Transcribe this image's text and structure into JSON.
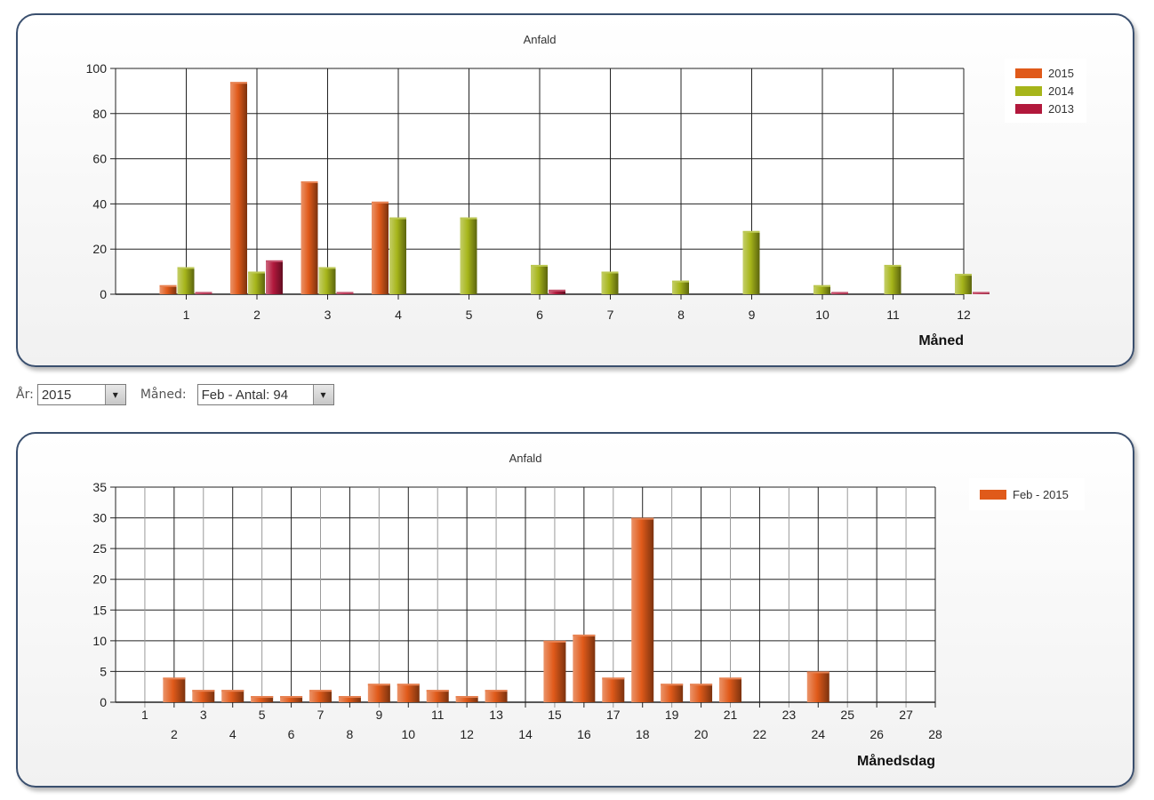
{
  "colors": {
    "s2015": "#e05a1a",
    "s2014": "#a6b51a",
    "s2013": "#b2183c"
  },
  "chart1": {
    "title": "Anfald",
    "xlabel": "Måned",
    "legend": [
      "2015",
      "2014",
      "2013"
    ]
  },
  "controls": {
    "year_label": "År:",
    "year_value": "2015",
    "month_label": "Måned:",
    "month_value": "Feb - Antal: 94",
    "arrow": "▾"
  },
  "chart2": {
    "title": "Anfald",
    "xlabel": "Månedsdag",
    "legend": [
      "Feb - 2015"
    ]
  },
  "chart_data": [
    {
      "type": "bar",
      "title": "Anfald",
      "xlabel": "Måned",
      "ylabel": "",
      "categories": [
        "1",
        "2",
        "3",
        "4",
        "5",
        "6",
        "7",
        "8",
        "9",
        "10",
        "11",
        "12"
      ],
      "series": [
        {
          "name": "2015",
          "values": [
            4,
            94,
            50,
            41,
            0,
            0,
            0,
            0,
            0,
            0,
            0,
            0
          ]
        },
        {
          "name": "2014",
          "values": [
            12,
            10,
            12,
            34,
            34,
            13,
            10,
            6,
            28,
            4,
            13,
            9
          ]
        },
        {
          "name": "2013",
          "values": [
            1,
            15,
            1,
            0,
            0,
            2,
            0,
            0,
            0,
            1,
            0,
            1
          ]
        }
      ],
      "ylim": [
        0,
        100
      ],
      "yticks": [
        0,
        20,
        40,
        60,
        80,
        100
      ],
      "grid": true,
      "legend_position": "top-right"
    },
    {
      "type": "bar",
      "title": "Anfald",
      "xlabel": "Månedsdag",
      "ylabel": "",
      "categories": [
        "1",
        "2",
        "3",
        "4",
        "5",
        "6",
        "7",
        "8",
        "9",
        "10",
        "11",
        "12",
        "13",
        "14",
        "15",
        "16",
        "17",
        "18",
        "19",
        "20",
        "21",
        "22",
        "23",
        "24",
        "25",
        "26",
        "27",
        "28"
      ],
      "series": [
        {
          "name": "Feb - 2015",
          "values": [
            0,
            4,
            2,
            2,
            1,
            1,
            2,
            1,
            3,
            3,
            2,
            1,
            2,
            0,
            10,
            11,
            4,
            30,
            3,
            3,
            4,
            0,
            0,
            5,
            0,
            0,
            0,
            0
          ]
        }
      ],
      "ylim": [
        0,
        35
      ],
      "yticks": [
        0,
        5,
        10,
        15,
        20,
        25,
        30,
        35
      ],
      "grid": true,
      "legend_position": "top-right"
    }
  ]
}
